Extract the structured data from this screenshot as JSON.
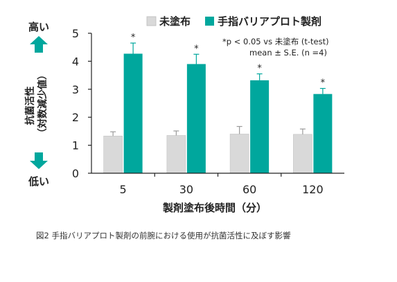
{
  "chart_data": {
    "type": "bar",
    "categories": [
      "5",
      "30",
      "60",
      "120"
    ],
    "series": [
      {
        "name": "未塗布",
        "color": "#d9d9d9",
        "values": [
          1.33,
          1.35,
          1.4,
          1.39
        ],
        "errors": [
          0.15,
          0.16,
          0.27,
          0.19
        ]
      },
      {
        "name": "手指バリアプロト製剤",
        "color": "#00a79d",
        "values": [
          4.27,
          3.9,
          3.32,
          2.83
        ],
        "errors": [
          0.38,
          0.35,
          0.23,
          0.2
        ]
      }
    ],
    "significance": [
      "*",
      "*",
      "*",
      "*"
    ],
    "ylabel": "抗菌活性\n（対数減少値）",
    "xlabel": "製剤塗布後時間（分）",
    "ylim": [
      0,
      5
    ],
    "yticks": [
      "0",
      "1",
      "2",
      "3",
      "4",
      "5"
    ],
    "y_high_label": "高い",
    "y_low_label": "低い",
    "annotation_lines": [
      "*p < 0.05 vs 未塗布 (t-test)",
      "mean ± S.E. (n =4)"
    ],
    "arrow_color": "#00a79d"
  },
  "caption": "図2 手指バリアプロト製剤の前腕における使用が抗菌活性に及ぼす影響"
}
